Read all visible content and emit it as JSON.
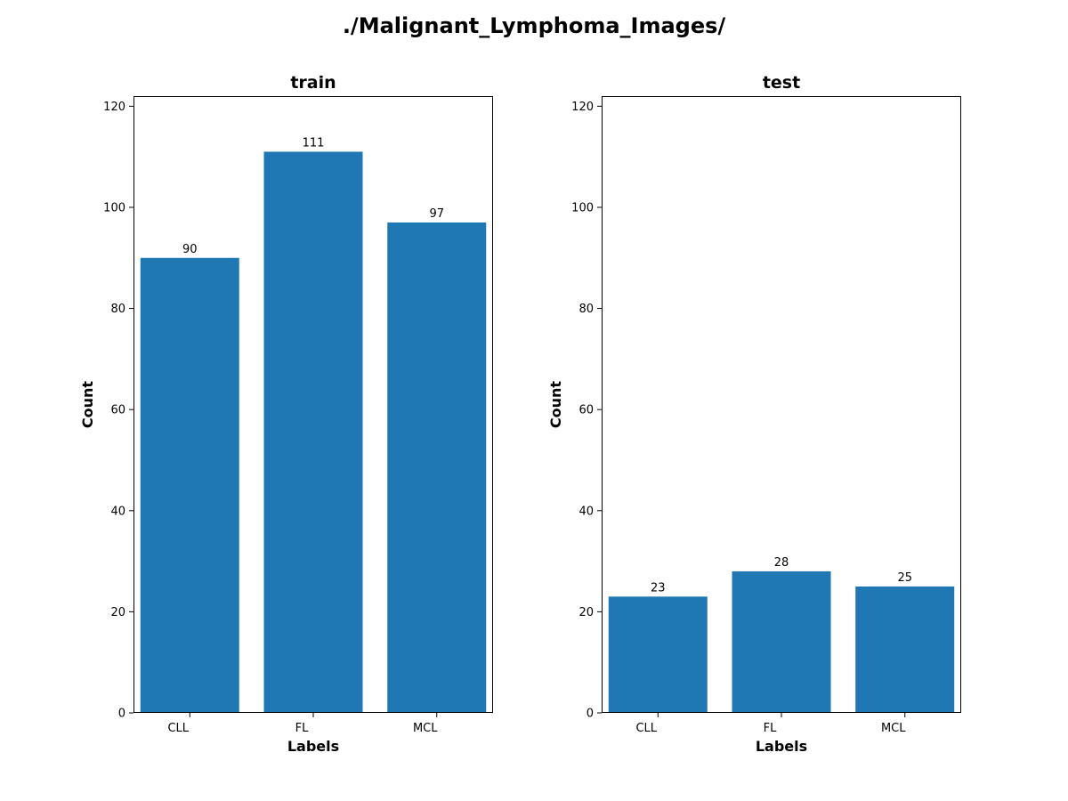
{
  "figure_title": "./Malignant_Lymphoma_Images/",
  "colors": {
    "bar": "#1f77b4",
    "text": "#000000",
    "axes": "#000000",
    "background": "#ffffff"
  },
  "chart_data": [
    {
      "type": "bar",
      "title": "train",
      "xlabel": "Labels",
      "ylabel": "Count",
      "categories": [
        "CLL",
        "FL",
        "MCL"
      ],
      "values": [
        90,
        111,
        97
      ],
      "data_labels": [
        "90",
        "111",
        "97"
      ],
      "ylim": [
        0,
        122
      ],
      "yticks": [
        0,
        20,
        40,
        60,
        80,
        100,
        120
      ],
      "grid": false,
      "legend": "none"
    },
    {
      "type": "bar",
      "title": "test",
      "xlabel": "Labels",
      "ylabel": "Count",
      "categories": [
        "CLL",
        "FL",
        "MCL"
      ],
      "values": [
        23,
        28,
        25
      ],
      "data_labels": [
        "23",
        "28",
        "25"
      ],
      "ylim": [
        0,
        122
      ],
      "yticks": [
        0,
        20,
        40,
        60,
        80,
        100,
        120
      ],
      "grid": false,
      "legend": "none"
    }
  ]
}
